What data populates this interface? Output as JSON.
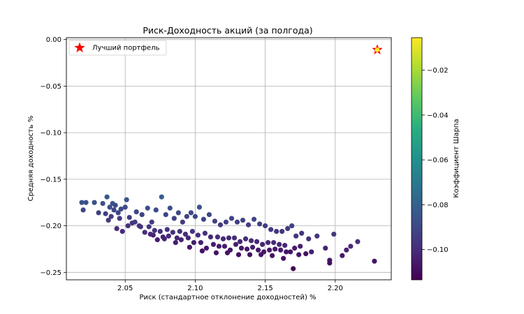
{
  "chart_data": {
    "type": "scatter",
    "title": "Риск-Доходность акций (за полгода)",
    "xlabel": "Риск (стандартное отклонение доходностей) %",
    "ylabel": "Средняя доходность %",
    "xlim": [
      2.008,
      2.24
    ],
    "ylim": [
      -0.258,
      0.002
    ],
    "xticks": [
      2.05,
      2.1,
      2.15,
      2.2
    ],
    "xtick_labels": [
      "2.05",
      "2.10",
      "2.15",
      "2.20"
    ],
    "yticks": [
      0.0,
      -0.05,
      -0.1,
      -0.15,
      -0.2,
      -0.25
    ],
    "ytick_labels": [
      "0.00",
      "−0.05",
      "−0.10",
      "−0.15",
      "−0.20",
      "−0.25"
    ],
    "grid": true,
    "legend": {
      "placement": "top-left",
      "entries": [
        "Лучший портфель"
      ]
    },
    "colorbar": {
      "label": "Коэффициент Шарпа",
      "colormap": "viridis",
      "range": [
        -0.1135,
        -0.0055
      ],
      "ticks": [
        -0.02,
        -0.04,
        -0.06,
        -0.08,
        -0.1
      ],
      "tick_labels": [
        "−0.02",
        "−0.04",
        "−0.06",
        "−0.08",
        "−0.10"
      ]
    },
    "series": [
      {
        "kind": "portfolios",
        "x": [
          2.019,
          2.02,
          2.022,
          2.028,
          2.031,
          2.034,
          2.036,
          2.037,
          2.038,
          2.039,
          2.04,
          2.041,
          2.042,
          2.043,
          2.044,
          2.045,
          2.046,
          2.047,
          2.048,
          2.05,
          2.051,
          2.052,
          2.053,
          2.055,
          2.058,
          2.062,
          2.066,
          2.069,
          2.072,
          2.076,
          2.079,
          2.082,
          2.085,
          2.088,
          2.091,
          2.094,
          2.097,
          2.1,
          2.103,
          2.106,
          2.11,
          2.114,
          2.118,
          2.122,
          2.126,
          2.13,
          2.134,
          2.138,
          2.142,
          2.146,
          2.15,
          2.154,
          2.158,
          2.162,
          2.166,
          2.169,
          2.172,
          2.176,
          2.181,
          2.187,
          2.193,
          2.196,
          2.199,
          2.205,
          2.208,
          2.211,
          2.216,
          2.228,
          2.06,
          2.064,
          2.068,
          2.073,
          2.077,
          2.081,
          2.086,
          2.09,
          2.095,
          2.099,
          2.104,
          2.108,
          2.113,
          2.117,
          2.121,
          2.125,
          2.129,
          2.133,
          2.137,
          2.141,
          2.145,
          2.149,
          2.153,
          2.157,
          2.161,
          2.165,
          2.168,
          2.171,
          2.175,
          2.179,
          2.057,
          2.061,
          2.067,
          2.071,
          2.075,
          2.08,
          2.084,
          2.089,
          2.093,
          2.098,
          2.102,
          2.107,
          2.111,
          2.116,
          2.12,
          2.124,
          2.128,
          2.132,
          2.136,
          2.14,
          2.144,
          2.148,
          2.152,
          2.156,
          2.16,
          2.164,
          2.07,
          2.078,
          2.087,
          2.096,
          2.105,
          2.115,
          2.123,
          2.131,
          2.139,
          2.147,
          2.155,
          2.163,
          2.17,
          2.174,
          2.183,
          2.196
        ],
        "y": [
          -0.175,
          -0.183,
          -0.175,
          -0.175,
          -0.186,
          -0.176,
          -0.187,
          -0.169,
          -0.194,
          -0.18,
          -0.19,
          -0.176,
          -0.183,
          -0.178,
          -0.203,
          -0.186,
          -0.192,
          -0.182,
          -0.206,
          -0.18,
          -0.172,
          -0.2,
          -0.191,
          -0.197,
          -0.185,
          -0.188,
          -0.181,
          -0.196,
          -0.183,
          -0.169,
          -0.188,
          -0.181,
          -0.192,
          -0.186,
          -0.196,
          -0.19,
          -0.186,
          -0.19,
          -0.18,
          -0.193,
          -0.188,
          -0.195,
          -0.199,
          -0.196,
          -0.192,
          -0.196,
          -0.194,
          -0.199,
          -0.193,
          -0.198,
          -0.2,
          -0.204,
          -0.206,
          -0.206,
          -0.203,
          -0.2,
          -0.211,
          -0.208,
          -0.214,
          -0.211,
          -0.224,
          -0.237,
          -0.209,
          -0.232,
          -0.226,
          -0.222,
          -0.217,
          -0.238,
          -0.2,
          -0.207,
          -0.209,
          -0.215,
          -0.212,
          -0.211,
          -0.218,
          -0.215,
          -0.213,
          -0.218,
          -0.218,
          -0.224,
          -0.22,
          -0.222,
          -0.222,
          -0.226,
          -0.22,
          -0.224,
          -0.225,
          -0.223,
          -0.226,
          -0.228,
          -0.226,
          -0.225,
          -0.226,
          -0.228,
          -0.228,
          -0.224,
          -0.222,
          -0.23,
          -0.196,
          -0.201,
          -0.201,
          -0.205,
          -0.206,
          -0.204,
          -0.207,
          -0.206,
          -0.209,
          -0.206,
          -0.21,
          -0.208,
          -0.212,
          -0.212,
          -0.214,
          -0.213,
          -0.213,
          -0.217,
          -0.214,
          -0.216,
          -0.217,
          -0.22,
          -0.218,
          -0.218,
          -0.22,
          -0.221,
          -0.21,
          -0.214,
          -0.213,
          -0.223,
          -0.227,
          -0.229,
          -0.229,
          -0.231,
          -0.231,
          -0.231,
          -0.232,
          -0.235,
          -0.246,
          -0.231,
          -0.228,
          -0.24
        ],
        "sharpe": [
          -0.087,
          -0.091,
          -0.087,
          -0.087,
          -0.093,
          -0.087,
          -0.093,
          -0.084,
          -0.096,
          -0.089,
          -0.094,
          -0.087,
          -0.091,
          -0.088,
          -0.1,
          -0.092,
          -0.095,
          -0.09,
          -0.101,
          -0.089,
          -0.085,
          -0.098,
          -0.094,
          -0.097,
          -0.091,
          -0.092,
          -0.088,
          -0.095,
          -0.089,
          -0.082,
          -0.091,
          -0.088,
          -0.093,
          -0.09,
          -0.095,
          -0.092,
          -0.09,
          -0.091,
          -0.086,
          -0.092,
          -0.09,
          -0.093,
          -0.095,
          -0.093,
          -0.091,
          -0.093,
          -0.092,
          -0.094,
          -0.091,
          -0.093,
          -0.094,
          -0.096,
          -0.097,
          -0.097,
          -0.095,
          -0.093,
          -0.098,
          -0.097,
          -0.099,
          -0.097,
          -0.103,
          -0.108,
          -0.096,
          -0.106,
          -0.103,
          -0.101,
          -0.098,
          -0.107,
          -0.097,
          -0.1,
          -0.101,
          -0.104,
          -0.102,
          -0.101,
          -0.104,
          -0.103,
          -0.102,
          -0.104,
          -0.104,
          -0.107,
          -0.105,
          -0.105,
          -0.105,
          -0.107,
          -0.104,
          -0.106,
          -0.106,
          -0.105,
          -0.106,
          -0.107,
          -0.106,
          -0.106,
          -0.106,
          -0.107,
          -0.107,
          -0.105,
          -0.104,
          -0.108,
          -0.095,
          -0.098,
          -0.097,
          -0.099,
          -0.1,
          -0.098,
          -0.099,
          -0.098,
          -0.1,
          -0.098,
          -0.1,
          -0.099,
          -0.101,
          -0.1,
          -0.101,
          -0.101,
          -0.1,
          -0.102,
          -0.101,
          -0.101,
          -0.102,
          -0.103,
          -0.102,
          -0.101,
          -0.102,
          -0.102,
          -0.102,
          -0.103,
          -0.102,
          -0.106,
          -0.108,
          -0.108,
          -0.108,
          -0.109,
          -0.108,
          -0.108,
          -0.108,
          -0.109,
          -0.113,
          -0.107,
          -0.105,
          -0.109
        ]
      },
      {
        "name": "Лучший портфель",
        "kind": "best",
        "x": [
          2.23
        ],
        "y": [
          -0.011
        ],
        "sharpe": [
          -0.005
        ]
      }
    ]
  },
  "colors": {
    "best_marker": "#ff0000",
    "grid": "#b0b0b0",
    "axes": "#000000"
  }
}
